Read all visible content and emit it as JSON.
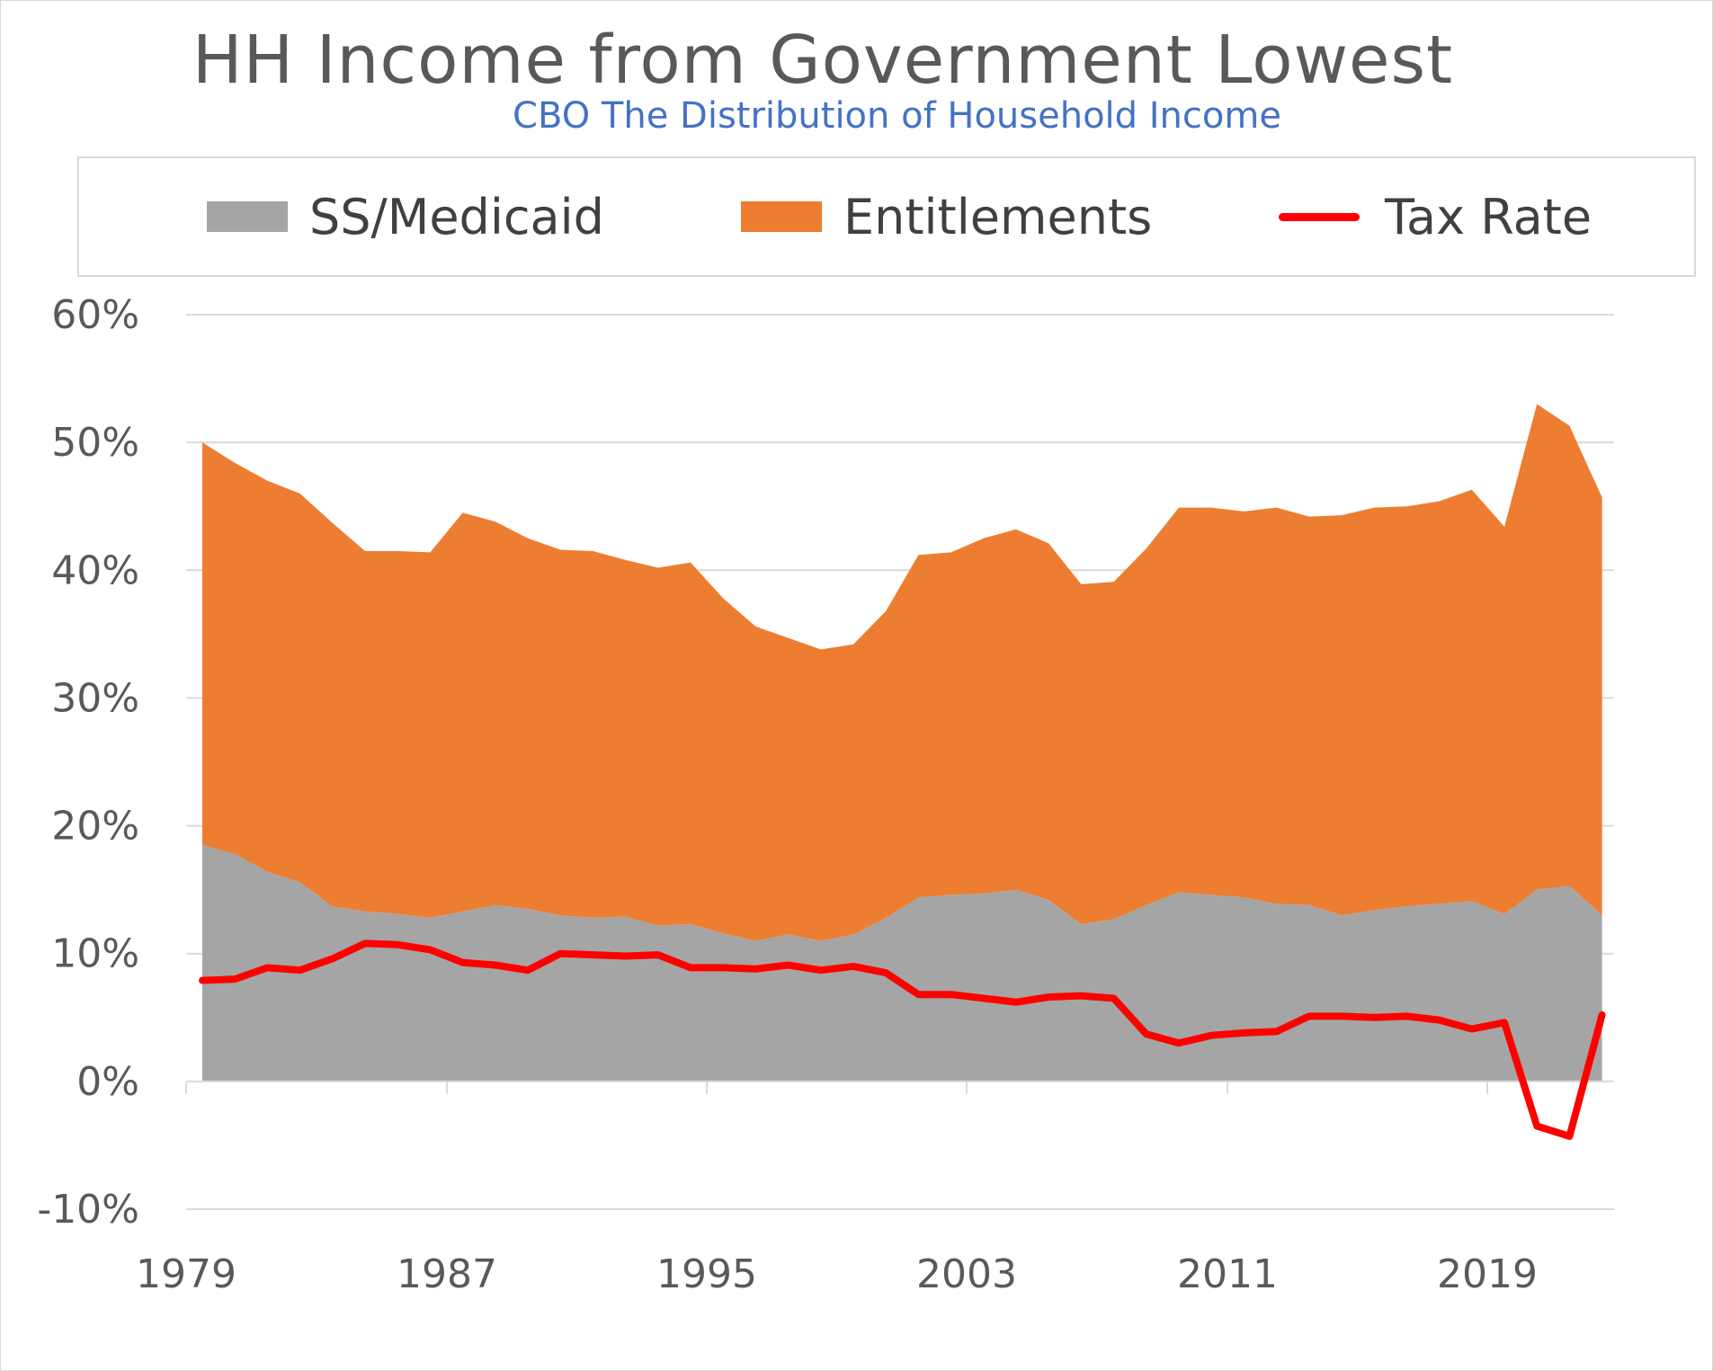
{
  "title": "HH Income from Government Lowest",
  "subtitle": "CBO The Distribution of Household Income",
  "legend": [
    {
      "label": "SS/Medicaid",
      "color": "#a5a5a5",
      "kind": "area"
    },
    {
      "label": "Entitlements",
      "color": "#ed7d31",
      "kind": "area"
    },
    {
      "label": "Tax Rate",
      "color": "#ff0000",
      "kind": "line"
    }
  ],
  "chart_data": {
    "type": "area",
    "title": "HH Income from Government Lowest",
    "subtitle": "CBO The Distribution of Household Income",
    "x": [
      1979,
      1980,
      1981,
      1982,
      1983,
      1984,
      1985,
      1986,
      1987,
      1988,
      1989,
      1990,
      1991,
      1992,
      1993,
      1994,
      1995,
      1996,
      1997,
      1998,
      1999,
      2000,
      2001,
      2002,
      2003,
      2004,
      2005,
      2006,
      2007,
      2008,
      2009,
      2010,
      2011,
      2012,
      2013,
      2014,
      2015,
      2016,
      2017,
      2018,
      2019,
      2020,
      2021,
      2022
    ],
    "x_ticks": [
      "1979",
      "1987",
      "1995",
      "2003",
      "2011",
      "2019"
    ],
    "y_ticks": [
      "60%",
      "50%",
      "40%",
      "30%",
      "20%",
      "10%",
      "0%",
      "-10%"
    ],
    "ylim": [
      -10,
      60
    ],
    "grid": true,
    "legend_position": "top",
    "series": [
      {
        "name": "SS/Medicaid",
        "type": "stacked-area",
        "color": "#a5a5a5",
        "values": [
          18.5,
          17.8,
          16.4,
          15.6,
          13.7,
          13.3,
          13.1,
          12.8,
          13.3,
          13.8,
          13.5,
          13.0,
          12.8,
          12.9,
          12.2,
          12.3,
          11.6,
          11.0,
          11.5,
          11.0,
          11.5,
          12.8,
          14.4,
          14.6,
          14.7,
          15.0,
          14.2,
          12.3,
          12.7,
          13.8,
          14.8,
          14.6,
          14.4,
          13.9,
          13.8,
          13.0,
          13.4,
          13.7,
          13.9,
          14.1,
          13.1,
          15.0,
          15.3,
          13.0
        ]
      },
      {
        "name": "Entitlements",
        "type": "stacked-area",
        "color": "#ed7d31",
        "values": [
          31.5,
          30.6,
          30.6,
          30.4,
          30.0,
          28.2,
          28.4,
          28.6,
          31.2,
          30.0,
          29.0,
          28.6,
          28.7,
          27.9,
          28.0,
          28.3,
          26.2,
          24.6,
          23.2,
          22.8,
          22.7,
          24.0,
          26.8,
          26.8,
          27.8,
          28.2,
          27.9,
          26.6,
          26.4,
          27.9,
          30.1,
          30.3,
          30.2,
          31.0,
          30.4,
          31.3,
          31.5,
          31.3,
          31.5,
          32.2,
          30.3,
          38.0,
          36.0,
          32.7
        ]
      },
      {
        "name": "Tax Rate",
        "type": "line",
        "color": "#ff0000",
        "values": [
          7.9,
          8.0,
          8.9,
          8.7,
          9.6,
          10.8,
          10.7,
          10.3,
          9.3,
          9.1,
          8.7,
          10.0,
          9.9,
          9.8,
          9.9,
          8.9,
          8.9,
          8.8,
          9.1,
          8.7,
          9.0,
          8.5,
          6.8,
          6.8,
          6.5,
          6.2,
          6.6,
          6.7,
          6.5,
          3.7,
          3.0,
          3.6,
          3.8,
          3.9,
          5.1,
          5.1,
          5.0,
          5.1,
          4.8,
          4.1,
          4.6,
          -3.5,
          -4.3,
          5.2
        ]
      }
    ]
  }
}
